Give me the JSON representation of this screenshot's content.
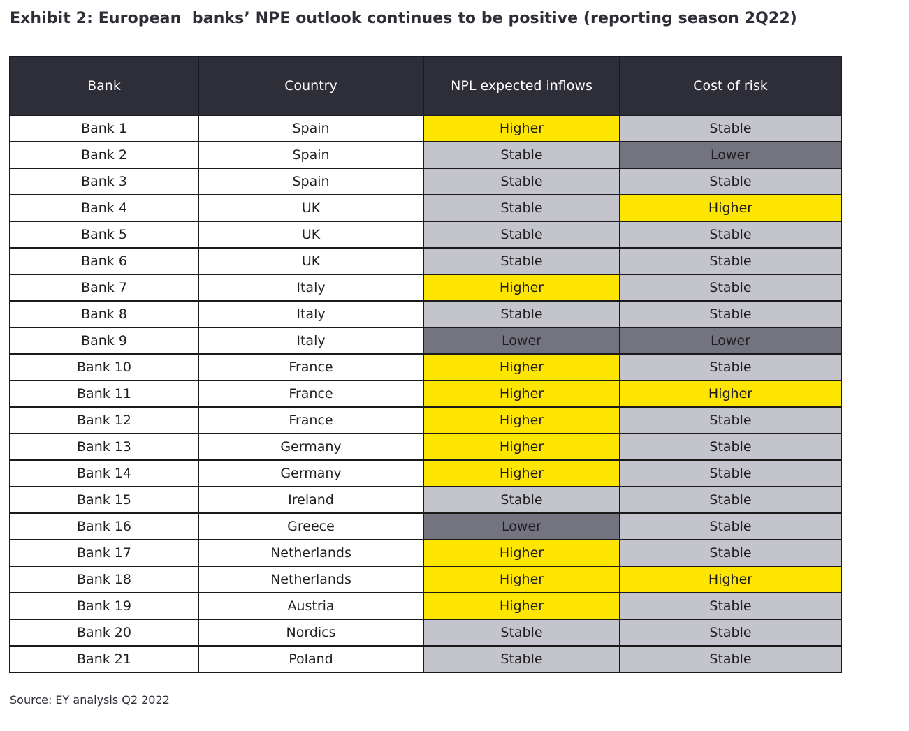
{
  "title": "Exhibit 2: European  banks’ NPE outlook continues to be positive (reporting season 2Q22)",
  "columns": [
    "Bank",
    "Country",
    "NPL expected inflows",
    "Cost of risk"
  ],
  "status_colors": {
    "Higher": "#ffe600",
    "Stable": "#c4c4cd",
    "Lower": "#747480"
  },
  "rows": [
    {
      "bank": "Bank 1",
      "country": "Spain",
      "npl": "Higher",
      "cor": "Stable"
    },
    {
      "bank": "Bank 2",
      "country": "Spain",
      "npl": "Stable",
      "cor": "Lower"
    },
    {
      "bank": "Bank 3",
      "country": "Spain",
      "npl": "Stable",
      "cor": "Stable"
    },
    {
      "bank": "Bank 4",
      "country": "UK",
      "npl": "Stable",
      "cor": "Higher"
    },
    {
      "bank": "Bank 5",
      "country": "UK",
      "npl": "Stable",
      "cor": "Stable"
    },
    {
      "bank": "Bank 6",
      "country": "UK",
      "npl": "Stable",
      "cor": "Stable"
    },
    {
      "bank": "Bank 7",
      "country": "Italy",
      "npl": "Higher",
      "cor": "Stable"
    },
    {
      "bank": "Bank 8",
      "country": "Italy",
      "npl": "Stable",
      "cor": "Stable"
    },
    {
      "bank": "Bank 9",
      "country": "Italy",
      "npl": "Lower",
      "cor": "Lower"
    },
    {
      "bank": "Bank 10",
      "country": "France",
      "npl": "Higher",
      "cor": "Stable"
    },
    {
      "bank": "Bank 11",
      "country": "France",
      "npl": "Higher",
      "cor": "Higher"
    },
    {
      "bank": "Bank 12",
      "country": "France",
      "npl": "Higher",
      "cor": "Stable"
    },
    {
      "bank": "Bank 13",
      "country": "Germany",
      "npl": "Higher",
      "cor": "Stable"
    },
    {
      "bank": "Bank 14",
      "country": "Germany",
      "npl": "Higher",
      "cor": "Stable"
    },
    {
      "bank": "Bank 15",
      "country": "Ireland",
      "npl": "Stable",
      "cor": "Stable"
    },
    {
      "bank": "Bank 16",
      "country": "Greece",
      "npl": "Lower",
      "cor": "Stable"
    },
    {
      "bank": "Bank 17",
      "country": "Netherlands",
      "npl": "Higher",
      "cor": "Stable"
    },
    {
      "bank": "Bank 18",
      "country": "Netherlands",
      "npl": "Higher",
      "cor": "Higher"
    },
    {
      "bank": "Bank 19",
      "country": "Austria",
      "npl": "Higher",
      "cor": "Stable"
    },
    {
      "bank": "Bank 20",
      "country": "Nordics",
      "npl": "Stable",
      "cor": "Stable"
    },
    {
      "bank": "Bank 21",
      "country": "Poland",
      "npl": "Stable",
      "cor": "Stable"
    }
  ],
  "source": "Source: EY analysis Q2 2022"
}
